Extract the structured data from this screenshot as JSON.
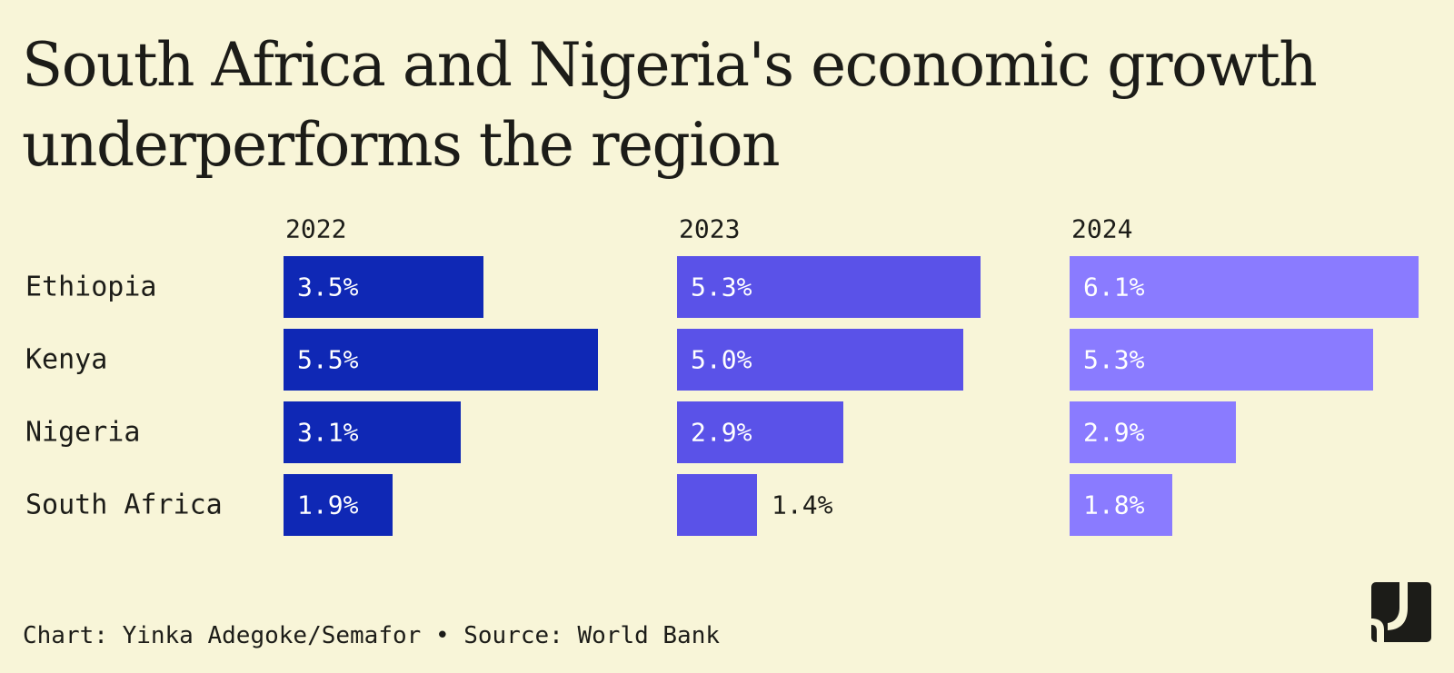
{
  "title": {
    "line1": "South Africa and Nigeria's economic growth",
    "line2": "underperforms the region"
  },
  "chart_data": {
    "type": "bar",
    "orientation": "horizontal",
    "layout": "small-multiples",
    "categories": [
      "Ethiopia",
      "Kenya",
      "Nigeria",
      "South Africa"
    ],
    "series": [
      {
        "name": "2022",
        "values": [
          3.5,
          5.5,
          3.1,
          1.9
        ],
        "labels": [
          "3.5%",
          "5.5%",
          "3.1%",
          "1.9%"
        ],
        "color": "#0f28b5"
      },
      {
        "name": "2023",
        "values": [
          5.3,
          5.0,
          2.9,
          1.4
        ],
        "labels": [
          "5.3%",
          "5.0%",
          "2.9%",
          "1.4%"
        ],
        "color": "#5a52e8"
      },
      {
        "name": "2024",
        "values": [
          6.1,
          5.3,
          2.9,
          1.8
        ],
        "labels": [
          "6.1%",
          "5.3%",
          "2.9%",
          "1.8%"
        ],
        "color": "#8a7bff"
      }
    ],
    "xlim": [
      0,
      6.1
    ],
    "grid": false,
    "label_color_inside": "#ffffff",
    "label_color_outside": "#1c1c18"
  },
  "footer": {
    "credit": "Chart: Yinka Adegoke/Semafor • Source: World Bank"
  },
  "logo": {
    "icon": "semafor-logo-icon",
    "color": "#1c1c18"
  }
}
